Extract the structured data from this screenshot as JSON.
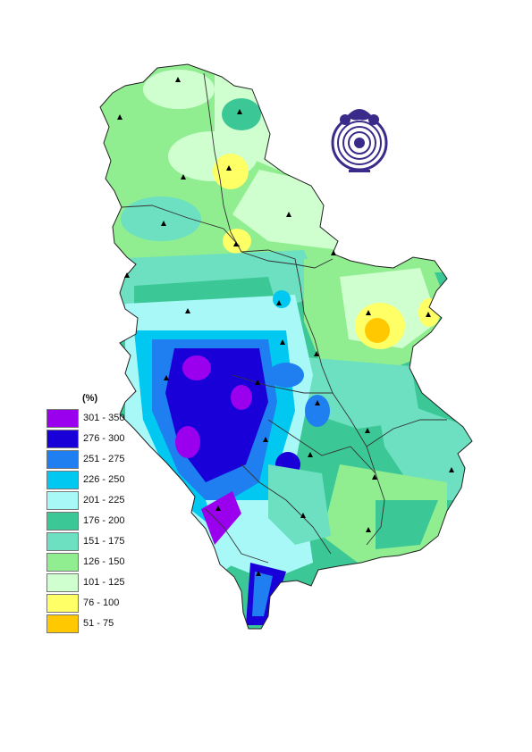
{
  "legend": {
    "unit": "(%)",
    "classes": [
      {
        "label": "301 - 350",
        "color": "#9a00ee"
      },
      {
        "label": "276 - 300",
        "color": "#1a00d8"
      },
      {
        "label": "251 - 275",
        "color": "#1f7ef0"
      },
      {
        "label": "226 - 250",
        "color": "#00c8f0"
      },
      {
        "label": "201 - 225",
        "color": "#a8f8f8"
      },
      {
        "label": "176 - 200",
        "color": "#3cc896"
      },
      {
        "label": "151 - 175",
        "color": "#6ce0c0"
      },
      {
        "label": "126 - 150",
        "color": "#90ee90"
      },
      {
        "label": "101 - 125",
        "color": "#cfffcf"
      },
      {
        "label": "76 - 100",
        "color": "#ffff66"
      },
      {
        "label": "51 - 75",
        "color": "#ffc800"
      }
    ]
  },
  "colors": {
    "border": "#222222",
    "river": "#333333",
    "station_marker": "#000000",
    "logo": "#3a2a8a"
  }
}
